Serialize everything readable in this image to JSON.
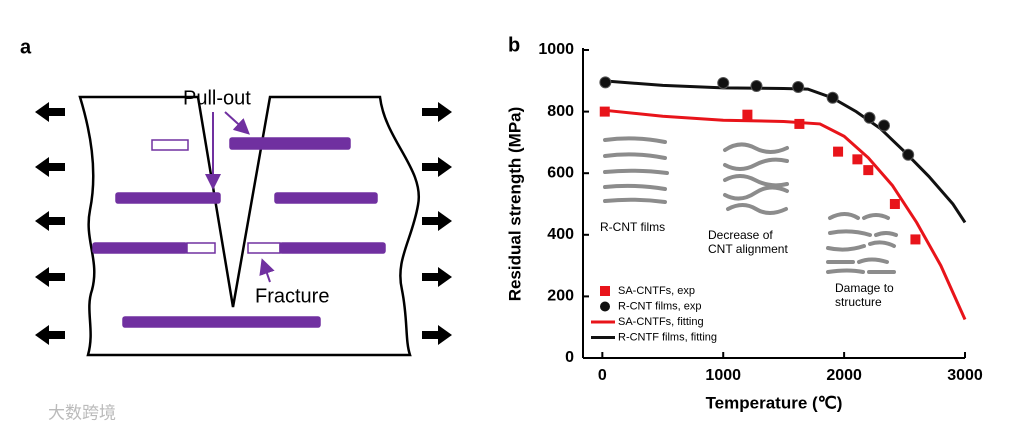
{
  "diagram": {
    "label": "a",
    "annotations": [
      "Pull-out",
      "Fracture"
    ]
  },
  "chart_data": {
    "type": "scatter",
    "panel_label": "b",
    "x_label": "Temperature (℃)",
    "y_label": "Residual strength (MPa)",
    "xlim": [
      -160,
      3000
    ],
    "ylim": [
      0,
      1000
    ],
    "xticks": [
      0,
      1000,
      2000,
      3000
    ],
    "yticks": [
      0,
      200,
      400,
      600,
      800,
      1000
    ],
    "legend": "lower left",
    "annotations": [
      [
        "R-CNT films"
      ],
      [
        "Decrease of",
        "CNT alignment"
      ],
      [
        "Damage to",
        "structure"
      ]
    ],
    "series": [
      {
        "name": "SA-CNTFs, exp",
        "color": "#e8141a",
        "mode": "markers",
        "marker": "square",
        "x": [
          20,
          1200,
          1630,
          1950,
          2110,
          2200,
          2420,
          2590
        ],
        "values": [
          800,
          790,
          760,
          670,
          645,
          610,
          500,
          385
        ]
      },
      {
        "name": "R-CNT films, exp",
        "color": "#111111",
        "mode": "markers",
        "marker": "circle",
        "x": [
          25,
          1000,
          1275,
          1620,
          1905,
          2210,
          2330,
          2530
        ],
        "values": [
          895,
          893,
          883,
          880,
          845,
          780,
          755,
          660
        ]
      },
      {
        "name": "SA-CNTFs, fitting",
        "color": "#e8141a",
        "mode": "line",
        "x": [
          0,
          500,
          1000,
          1500,
          1800,
          2000,
          2200,
          2400,
          2600,
          2800,
          3000
        ],
        "values": [
          805,
          785,
          772,
          768,
          760,
          720,
          650,
          560,
          440,
          300,
          125
        ]
      },
      {
        "name": "R-CNTF films, fitting",
        "color": "#111111",
        "mode": "line",
        "x": [
          0,
          500,
          1000,
          1500,
          1700,
          1900,
          2100,
          2300,
          2500,
          2700,
          2900,
          3000
        ],
        "values": [
          900,
          885,
          877,
          875,
          873,
          845,
          800,
          745,
          670,
          590,
          500,
          440
        ]
      }
    ]
  },
  "watermark": "大数跨境"
}
